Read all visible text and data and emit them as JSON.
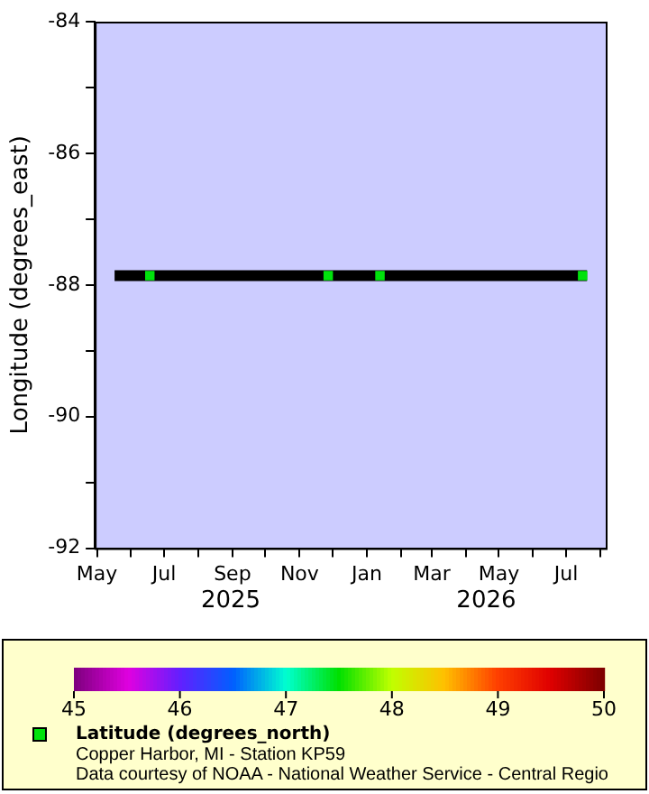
{
  "chart_data": {
    "type": "scatter",
    "ylabel": "Longitude (degrees_east)",
    "xlim": [
      "2025-04-29",
      "2026-08-06"
    ],
    "ylim": [
      -92,
      -84
    ],
    "xticks": [
      {
        "value": "2025-05-01",
        "label": "May"
      },
      {
        "value": "2025-06-01",
        "label": null
      },
      {
        "value": "2025-07-01",
        "label": "Jul"
      },
      {
        "value": "2025-08-01",
        "label": null
      },
      {
        "value": "2025-09-01",
        "label": "Sep"
      },
      {
        "value": "2025-10-01",
        "label": null
      },
      {
        "value": "2025-11-01",
        "label": "Nov"
      },
      {
        "value": "2025-12-01",
        "label": null
      },
      {
        "value": "2026-01-01",
        "label": "Jan"
      },
      {
        "value": "2026-02-01",
        "label": null
      },
      {
        "value": "2026-03-01",
        "label": "Mar"
      },
      {
        "value": "2026-04-01",
        "label": null
      },
      {
        "value": "2026-05-01",
        "label": "May"
      },
      {
        "value": "2026-06-01",
        "label": null
      },
      {
        "value": "2026-07-01",
        "label": "Jul"
      },
      {
        "value": "2026-08-01",
        "label": null
      }
    ],
    "yticks": [
      -84,
      {
        "value": -85,
        "label": null
      },
      -86,
      {
        "value": -87,
        "label": null
      },
      -88,
      {
        "value": -89,
        "label": null
      },
      -90,
      {
        "value": -91,
        "label": null
      },
      -92
    ],
    "series": [
      {
        "type": "line",
        "color": "#000000",
        "marker": "none",
        "x": [
          "2025-05-17",
          "2026-07-20"
        ],
        "values": [
          -87.86,
          -87.86
        ]
      },
      {
        "name": "Latitude (degrees_north)",
        "marker": "square",
        "x": [
          "2025-06-18",
          "2025-11-27",
          "2026-01-13",
          "2026-07-16"
        ],
        "values": [
          -87.86,
          -87.86,
          -87.86,
          -87.86
        ],
        "cvalues": [
          47.47,
          47.47,
          47.47,
          47.47
        ]
      }
    ],
    "clim": [
      45,
      50
    ],
    "cticks": [
      45,
      46,
      47,
      48,
      49,
      50
    ],
    "legend": "bottom",
    "grid": false,
    "annotations": [
      "2025",
      "2026",
      "Copper Harbor, MI - Station KP59",
      "Data courtesy of NOAA - National Weather Service - Central Regio"
    ]
  }
}
